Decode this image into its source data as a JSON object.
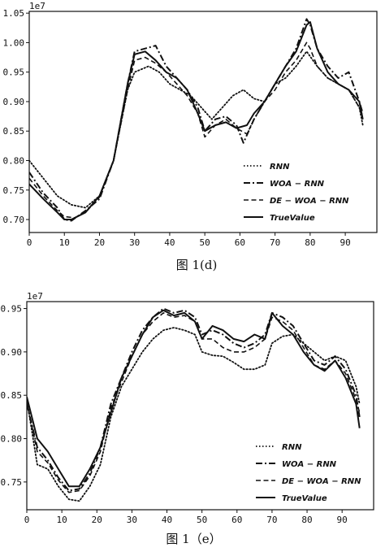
{
  "chart_data": [
    {
      "type": "line",
      "caption": "图 1(d)",
      "axis_multiplier": "1e7",
      "xlim": [
        0,
        99
      ],
      "ylim": [
        0.678,
        1.053
      ],
      "xticks": [
        0,
        10,
        20,
        30,
        40,
        50,
        60,
        70,
        80,
        90
      ],
      "yticks": [
        0.7,
        0.75,
        0.8,
        0.85,
        0.9,
        0.95,
        1.0,
        1.05
      ],
      "ytick_labels": [
        "0.70",
        "0.75",
        "0.80",
        "0.85",
        "0.90",
        "0.95",
        "1.00",
        "1.05"
      ],
      "legend_position": "lower-right",
      "series": [
        {
          "name": "RNN",
          "style": "dotted",
          "x": [
            0,
            4,
            8,
            12,
            16,
            20,
            24,
            28,
            30,
            34,
            37,
            40,
            43,
            46,
            49,
            52,
            55,
            58,
            61,
            64,
            67,
            70,
            73,
            76,
            79,
            82,
            85,
            88,
            91,
            94,
            95
          ],
          "y": [
            0.8,
            0.77,
            0.74,
            0.725,
            0.72,
            0.74,
            0.8,
            0.92,
            0.95,
            0.96,
            0.95,
            0.93,
            0.92,
            0.91,
            0.89,
            0.87,
            0.89,
            0.91,
            0.92,
            0.905,
            0.9,
            0.93,
            0.94,
            0.96,
            0.985,
            0.96,
            0.94,
            0.93,
            0.92,
            0.89,
            0.86
          ]
        },
        {
          "name": "WOA-RNN",
          "style": "dashdot",
          "x": [
            0,
            4,
            8,
            10,
            12,
            16,
            20,
            24,
            28,
            30,
            33,
            36,
            39,
            42,
            45,
            48,
            50,
            53,
            56,
            59,
            61,
            64,
            67,
            70,
            73,
            76,
            79,
            80,
            82,
            85,
            88,
            91,
            94,
            95
          ],
          "y": [
            0.78,
            0.745,
            0.72,
            0.7,
            0.698,
            0.715,
            0.735,
            0.8,
            0.93,
            0.985,
            0.99,
            0.995,
            0.96,
            0.94,
            0.92,
            0.89,
            0.85,
            0.87,
            0.875,
            0.86,
            0.83,
            0.87,
            0.9,
            0.93,
            0.96,
            0.99,
            1.04,
            1.03,
            0.99,
            0.96,
            0.94,
            0.95,
            0.9,
            0.88
          ]
        },
        {
          "name": "DE-WOA-RNN",
          "style": "dashed",
          "x": [
            0,
            4,
            8,
            10,
            13,
            16,
            20,
            24,
            28,
            30,
            33,
            36,
            39,
            42,
            45,
            48,
            50,
            53,
            56,
            59,
            62,
            64,
            67,
            70,
            73,
            76,
            79,
            80,
            82,
            85,
            88,
            91,
            94,
            95
          ],
          "y": [
            0.77,
            0.74,
            0.715,
            0.705,
            0.703,
            0.712,
            0.738,
            0.8,
            0.92,
            0.97,
            0.975,
            0.965,
            0.95,
            0.93,
            0.91,
            0.88,
            0.84,
            0.86,
            0.87,
            0.855,
            0.845,
            0.87,
            0.9,
            0.92,
            0.95,
            0.97,
            1.0,
            0.99,
            0.96,
            0.94,
            0.93,
            0.92,
            0.89,
            0.87
          ]
        },
        {
          "name": "TrueValue",
          "style": "solid",
          "x": [
            0,
            4,
            8,
            10,
            12,
            14,
            16,
            20,
            24,
            28,
            30,
            33,
            36,
            39,
            42,
            45,
            48,
            50,
            53,
            56,
            59,
            62,
            64,
            67,
            70,
            73,
            76,
            79,
            80,
            82,
            85,
            88,
            91,
            94,
            95
          ],
          "y": [
            0.76,
            0.735,
            0.712,
            0.7,
            0.7,
            0.706,
            0.712,
            0.74,
            0.8,
            0.93,
            0.98,
            0.985,
            0.97,
            0.95,
            0.94,
            0.92,
            0.88,
            0.85,
            0.86,
            0.865,
            0.855,
            0.86,
            0.88,
            0.9,
            0.93,
            0.96,
            0.985,
            1.03,
            1.035,
            0.99,
            0.95,
            0.93,
            0.92,
            0.9,
            0.87
          ]
        }
      ]
    },
    {
      "type": "line",
      "caption": "图 1（e）",
      "axis_multiplier": "1e7",
      "xlim": [
        0,
        99
      ],
      "ylim": [
        0.718,
        0.958
      ],
      "xticks": [
        0,
        10,
        20,
        30,
        40,
        50,
        60,
        70,
        80,
        90
      ],
      "yticks": [
        0.75,
        0.8,
        0.85,
        0.9,
        0.95
      ],
      "ytick_labels": [
        "0.75",
        "0.80",
        "0.85",
        "0.90",
        "0.95"
      ],
      "legend_position": "lower-right",
      "series": [
        {
          "name": "RNN",
          "style": "dotted",
          "x": [
            0,
            3,
            6,
            9,
            12,
            15,
            18,
            21,
            24,
            27,
            30,
            33,
            36,
            39,
            42,
            45,
            48,
            50,
            53,
            56,
            59,
            62,
            65,
            68,
            70,
            73,
            76,
            79,
            82,
            85,
            88,
            91,
            94,
            95
          ],
          "y": [
            0.845,
            0.77,
            0.765,
            0.745,
            0.73,
            0.728,
            0.745,
            0.77,
            0.825,
            0.86,
            0.88,
            0.9,
            0.915,
            0.925,
            0.928,
            0.925,
            0.92,
            0.9,
            0.896,
            0.895,
            0.888,
            0.88,
            0.88,
            0.885,
            0.91,
            0.918,
            0.92,
            0.91,
            0.9,
            0.89,
            0.895,
            0.89,
            0.86,
            0.84
          ]
        },
        {
          "name": "WOA-RNN",
          "style": "dashdot",
          "x": [
            0,
            3,
            6,
            9,
            12,
            15,
            18,
            21,
            24,
            27,
            30,
            33,
            36,
            39,
            42,
            45,
            48,
            50,
            53,
            56,
            59,
            62,
            65,
            68,
            70,
            73,
            76,
            79,
            82,
            85,
            88,
            91,
            94,
            95
          ],
          "y": [
            0.84,
            0.79,
            0.775,
            0.755,
            0.74,
            0.742,
            0.76,
            0.79,
            0.84,
            0.87,
            0.9,
            0.925,
            0.94,
            0.95,
            0.945,
            0.948,
            0.94,
            0.92,
            0.925,
            0.92,
            0.91,
            0.905,
            0.91,
            0.92,
            0.945,
            0.94,
            0.93,
            0.91,
            0.89,
            0.885,
            0.895,
            0.88,
            0.85,
            0.825
          ]
        },
        {
          "name": "DE-WOA-RNN",
          "style": "dashed",
          "x": [
            0,
            3,
            6,
            9,
            12,
            15,
            18,
            21,
            24,
            27,
            30,
            33,
            36,
            39,
            42,
            45,
            48,
            50,
            53,
            56,
            59,
            62,
            65,
            68,
            70,
            73,
            76,
            79,
            82,
            85,
            88,
            91,
            94,
            95
          ],
          "y": [
            0.842,
            0.785,
            0.772,
            0.752,
            0.738,
            0.74,
            0.757,
            0.785,
            0.835,
            0.865,
            0.895,
            0.92,
            0.935,
            0.945,
            0.94,
            0.942,
            0.935,
            0.915,
            0.915,
            0.905,
            0.9,
            0.9,
            0.905,
            0.915,
            0.94,
            0.935,
            0.925,
            0.905,
            0.885,
            0.88,
            0.89,
            0.875,
            0.845,
            0.83
          ]
        },
        {
          "name": "TrueValue",
          "style": "solid",
          "x": [
            0,
            3,
            6,
            9,
            12,
            15,
            18,
            21,
            24,
            27,
            30,
            33,
            36,
            39,
            42,
            45,
            48,
            50,
            53,
            56,
            59,
            62,
            65,
            68,
            70,
            73,
            76,
            79,
            82,
            85,
            88,
            91,
            94,
            95
          ],
          "y": [
            0.848,
            0.8,
            0.785,
            0.765,
            0.745,
            0.745,
            0.765,
            0.79,
            0.83,
            0.87,
            0.895,
            0.92,
            0.94,
            0.948,
            0.942,
            0.945,
            0.935,
            0.915,
            0.93,
            0.925,
            0.915,
            0.912,
            0.92,
            0.915,
            0.945,
            0.93,
            0.92,
            0.9,
            0.885,
            0.878,
            0.89,
            0.87,
            0.84,
            0.812
          ]
        }
      ]
    }
  ]
}
